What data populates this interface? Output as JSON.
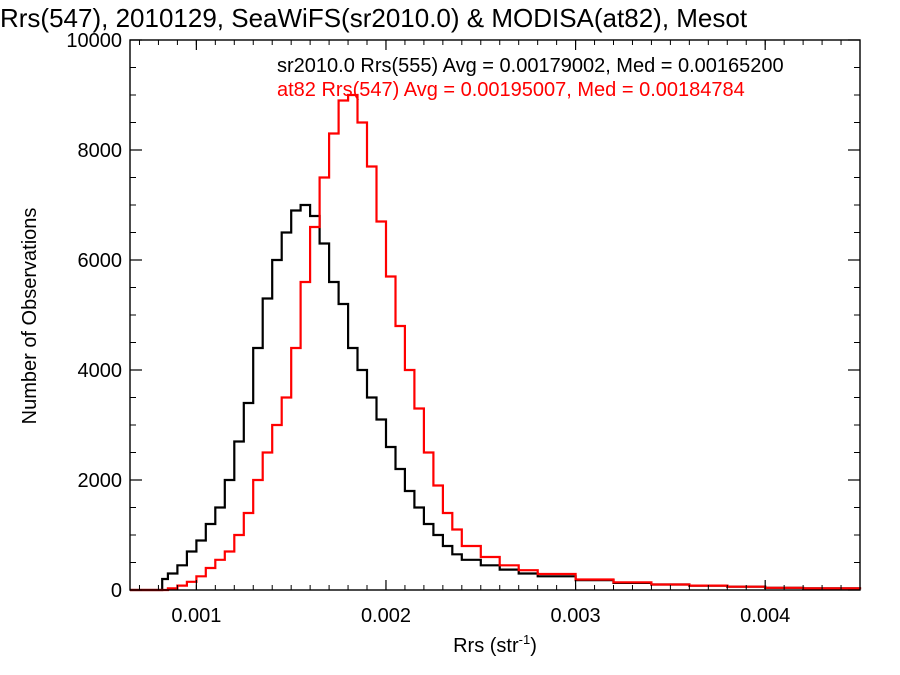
{
  "chart_data": {
    "type": "line",
    "title": "Rrs(547), 2010129, SeaWiFS(sr2010.0) & MODISA(at82), Mesot",
    "xlabel": "Rrs (str",
    "xlabel_sup": "-1",
    "xlabel_close": ")",
    "ylabel": "Number of Observations",
    "xlim": [
      0.00065,
      0.0045
    ],
    "ylim": [
      0,
      10000
    ],
    "xticks": [
      0.001,
      0.002,
      0.003,
      0.004
    ],
    "xtick_labels": [
      "0.001",
      "0.002",
      "0.003",
      "0.004"
    ],
    "yticks": [
      0,
      2000,
      4000,
      6000,
      8000,
      10000
    ],
    "ytick_labels": [
      "0",
      "2000",
      "4000",
      "6000",
      "8000",
      "10000"
    ],
    "grid": false,
    "annotations": [
      {
        "text": "sr2010.0 Rrs(555) Avg = 0.00179002, Med = 0.00165200",
        "color": "#000000"
      },
      {
        "text": "at82 Rrs(547) Avg = 0.00195007, Med = 0.00184784",
        "color": "#ff0000"
      }
    ],
    "series": [
      {
        "color": "#000000",
        "x": [
          0.00065,
          0.0008,
          0.00082,
          0.00085,
          0.0009,
          0.00095,
          0.001,
          0.00105,
          0.0011,
          0.00115,
          0.0012,
          0.00125,
          0.0013,
          0.00135,
          0.0014,
          0.00145,
          0.0015,
          0.00155,
          0.0016,
          0.00165,
          0.0017,
          0.00175,
          0.0018,
          0.00185,
          0.0019,
          0.00195,
          0.002,
          0.00205,
          0.0021,
          0.00215,
          0.0022,
          0.00225,
          0.0023,
          0.00235,
          0.0024,
          0.0025,
          0.0026,
          0.0027,
          0.0028,
          0.003,
          0.0032,
          0.0034,
          0.0036,
          0.0038,
          0.004,
          0.0042,
          0.0045
        ],
        "y": [
          0,
          0,
          200,
          300,
          450,
          700,
          900,
          1200,
          1500,
          2000,
          2700,
          3400,
          4400,
          5300,
          6000,
          6500,
          6900,
          7000,
          6800,
          6300,
          5600,
          5200,
          4400,
          4000,
          3500,
          3100,
          2600,
          2200,
          1800,
          1500,
          1200,
          1000,
          800,
          650,
          550,
          450,
          370,
          300,
          250,
          180,
          130,
          100,
          80,
          60,
          40,
          30,
          10
        ]
      },
      {
        "color": "#ff0000",
        "x": [
          0.00065,
          0.0008,
          0.00085,
          0.0009,
          0.00095,
          0.001,
          0.00105,
          0.0011,
          0.00115,
          0.0012,
          0.00125,
          0.0013,
          0.00135,
          0.0014,
          0.00145,
          0.0015,
          0.00155,
          0.0016,
          0.00165,
          0.0017,
          0.00175,
          0.0018,
          0.00185,
          0.0019,
          0.00195,
          0.002,
          0.00205,
          0.0021,
          0.00215,
          0.0022,
          0.00225,
          0.0023,
          0.00235,
          0.0024,
          0.0025,
          0.0026,
          0.0027,
          0.0028,
          0.003,
          0.0032,
          0.0034,
          0.0036,
          0.0038,
          0.004,
          0.0042,
          0.0045
        ],
        "y": [
          0,
          0,
          30,
          80,
          150,
          250,
          400,
          550,
          700,
          1000,
          1400,
          2000,
          2500,
          3000,
          3500,
          4400,
          5600,
          6600,
          7500,
          8300,
          8900,
          9000,
          8500,
          7700,
          6700,
          5700,
          4800,
          4000,
          3300,
          2500,
          1900,
          1400,
          1100,
          800,
          600,
          450,
          360,
          290,
          190,
          140,
          100,
          80,
          60,
          40,
          30,
          10
        ]
      }
    ]
  }
}
